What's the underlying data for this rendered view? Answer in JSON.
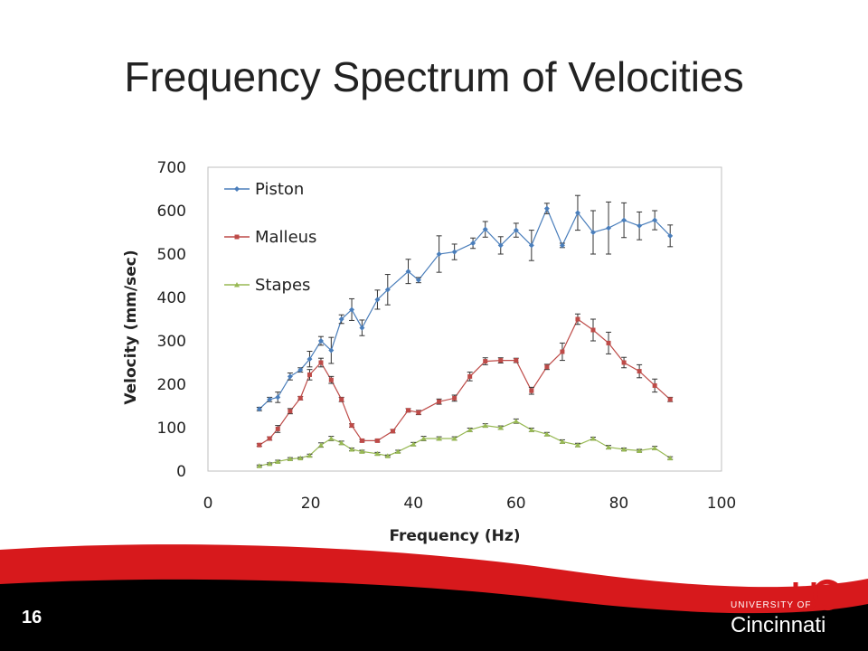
{
  "slide": {
    "title": "Frequency Spectrum of Velocities",
    "page_number": "16"
  },
  "logo": {
    "line1": "UNIVERSITY OF",
    "line2": "Cincinnati"
  },
  "colors": {
    "piston": "#4A7EBB",
    "malleus": "#BE4B48",
    "stapes": "#98B954",
    "footer_red": "#D7191C",
    "footer_black": "#000000"
  },
  "chart_data": {
    "type": "line",
    "xlabel": "Frequency (Hz)",
    "ylabel": "Velocity (mm/sec)",
    "xlim": [
      0,
      100
    ],
    "ylim": [
      0,
      700
    ],
    "xticks": [
      0,
      20,
      40,
      60,
      80,
      100
    ],
    "yticks": [
      0,
      100,
      200,
      300,
      400,
      500,
      600,
      700
    ],
    "grid": false,
    "legend_position": "top-left",
    "series": [
      {
        "name": "Piston",
        "x": [
          10,
          12,
          13.6,
          16,
          18,
          19.8,
          22,
          24,
          26,
          28,
          30,
          33,
          35,
          39,
          41,
          45,
          48,
          51.6,
          54,
          57,
          60,
          63,
          66,
          69,
          72,
          75,
          78,
          81,
          84,
          87,
          90
        ],
        "y": [
          143,
          165,
          170,
          218,
          233,
          258,
          300,
          278,
          350,
          372,
          330,
          395,
          418,
          460,
          440,
          500,
          505,
          525,
          557,
          520,
          555,
          520,
          605,
          520,
          595,
          550,
          560,
          578,
          565,
          578,
          542
        ],
        "err": [
          4,
          5,
          12,
          8,
          5,
          18,
          10,
          30,
          10,
          25,
          18,
          22,
          35,
          28,
          6,
          42,
          18,
          12,
          18,
          20,
          16,
          35,
          12,
          5,
          40,
          50,
          60,
          40,
          32,
          22,
          25
        ]
      },
      {
        "name": "Malleus",
        "x": [
          10,
          12,
          13.6,
          16,
          18,
          19.8,
          22,
          24,
          26,
          28,
          30,
          33,
          36,
          39,
          41,
          45,
          48,
          51,
          54,
          57,
          60,
          63,
          66,
          69,
          72,
          75,
          78,
          81,
          84,
          87,
          90
        ],
        "y": [
          60,
          75,
          97,
          138,
          168,
          222,
          250,
          210,
          165,
          105,
          70,
          70,
          92,
          140,
          135,
          160,
          168,
          218,
          253,
          255,
          255,
          185,
          240,
          275,
          350,
          325,
          295,
          250,
          230,
          197,
          165
        ],
        "err": [
          3,
          4,
          8,
          6,
          4,
          12,
          10,
          8,
          5,
          4,
          3,
          3,
          4,
          4,
          5,
          6,
          7,
          10,
          8,
          6,
          5,
          8,
          6,
          20,
          12,
          25,
          25,
          12,
          15,
          15,
          5
        ]
      },
      {
        "name": "Stapes",
        "x": [
          10,
          12,
          13.6,
          16,
          18,
          19.8,
          22,
          24,
          26,
          28,
          30,
          33,
          35,
          37,
          40,
          42,
          45,
          48,
          51,
          54,
          57,
          60,
          63,
          66,
          69,
          72,
          75,
          78,
          81,
          84,
          87,
          90
        ],
        "y": [
          12,
          17,
          22,
          28,
          30,
          36,
          60,
          75,
          65,
          50,
          45,
          40,
          35,
          45,
          62,
          75,
          75,
          75,
          95,
          105,
          100,
          115,
          95,
          85,
          68,
          60,
          75,
          55,
          50,
          47,
          53,
          30
        ],
        "err": [
          2,
          2,
          3,
          3,
          2,
          3,
          5,
          5,
          4,
          3,
          3,
          3,
          2,
          3,
          4,
          5,
          4,
          4,
          4,
          4,
          4,
          5,
          4,
          4,
          4,
          4,
          3,
          4,
          3,
          3,
          4,
          3
        ]
      }
    ]
  }
}
